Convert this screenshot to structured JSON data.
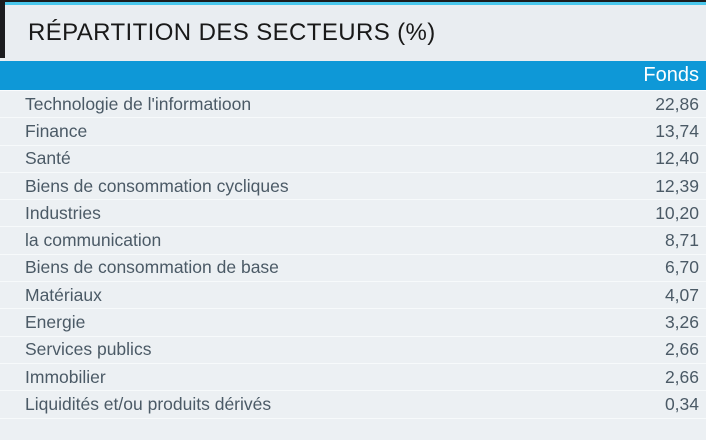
{
  "page": {
    "title": "RÉPARTITION DES SECTEURS (%)"
  },
  "table": {
    "value_column_header": "Fonds",
    "rows": [
      {
        "label": "Technologie de l'informatioon",
        "value": "22,86"
      },
      {
        "label": "Finance",
        "value": "13,74"
      },
      {
        "label": "Santé",
        "value": "12,40"
      },
      {
        "label": "Biens de consommation cycliques",
        "value": "12,39"
      },
      {
        "label": "Industries",
        "value": "10,20"
      },
      {
        "label": "la communication",
        "value": "8,71"
      },
      {
        "label": "Biens de consommation de base",
        "value": "6,70"
      },
      {
        "label": "Matériaux",
        "value": "4,07"
      },
      {
        "label": "Energie",
        "value": "3,26"
      },
      {
        "label": "Services publics",
        "value": "2,66"
      },
      {
        "label": "Immobilier",
        "value": "2,66"
      },
      {
        "label": "Liquidités et/ou produits dérivés",
        "value": "0,34"
      }
    ]
  },
  "chart_data": {
    "type": "table",
    "title": "RÉPARTITION DES SECTEURS (%)",
    "value_column": "Fonds",
    "unit": "%",
    "categories": [
      "Technologie de l'informatioon",
      "Finance",
      "Santé",
      "Biens de consommation cycliques",
      "Industries",
      "la communication",
      "Biens de consommation de base",
      "Matériaux",
      "Energie",
      "Services publics",
      "Immobilier",
      "Liquidités et/ou produits dérivés"
    ],
    "values": [
      22.86,
      13.74,
      12.4,
      12.39,
      10.2,
      8.71,
      6.7,
      4.07,
      3.26,
      2.66,
      2.66,
      0.34
    ],
    "value_labels": [
      "22,86",
      "13,74",
      "12,40",
      "12,39",
      "10,20",
      "8,71",
      "6,70",
      "4,07",
      "3,26",
      "2,66",
      "2,66",
      "0,34"
    ],
    "decimal_separator": ","
  },
  "colors": {
    "header_bg": "#0E98D7",
    "accent_cyan": "#4AC7EC",
    "frame_dark": "#1B1C1F",
    "title_bg": "#E9EDF1",
    "row_bg": "#ECF0F3",
    "row_text": "#4B5A66",
    "header_text": "#FFFFFF",
    "title_text": "#191919"
  }
}
